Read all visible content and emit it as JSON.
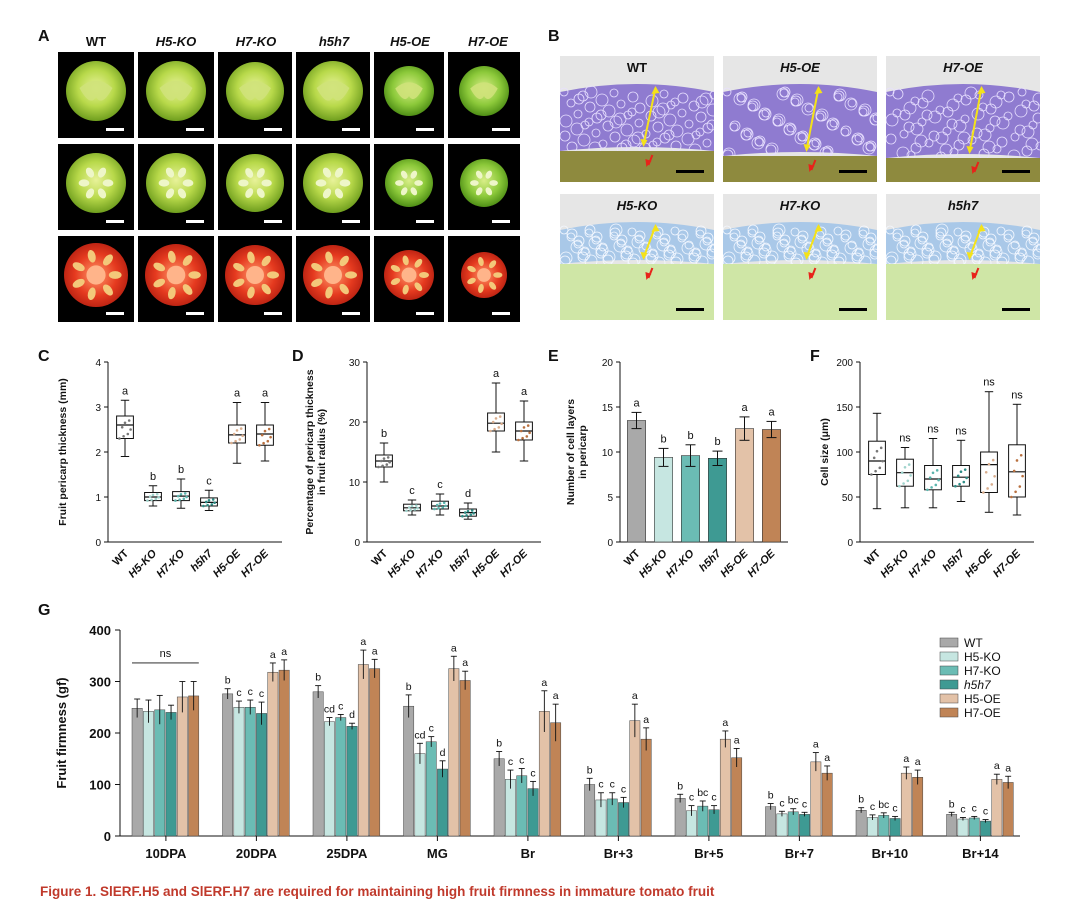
{
  "panels": {
    "a": "A",
    "b": "B",
    "c": "C",
    "d": "D",
    "e": "E",
    "f": "F",
    "g": "G"
  },
  "panel_a": {
    "columns": [
      "WT",
      "H5-KO",
      "H7-KO",
      "h5h7",
      "H5-OE",
      "H7-OE"
    ]
  },
  "panel_b": {
    "top_row": [
      "WT",
      "H5-OE",
      "H7-OE"
    ],
    "bottom_row": [
      "H5-KO",
      "H7-KO",
      "h5h7"
    ]
  },
  "caption": "Figure 1.  SlERF.H5 and SlERF.H7 are required for maintaining high fruit firmness in immature tomato fruit",
  "chart_data": [
    {
      "id": "C",
      "type": "box",
      "ylabel": "Fruit pericarp thickness (mm)",
      "ylim": [
        0,
        4
      ],
      "yticks": [
        0,
        1,
        2,
        3,
        4
      ],
      "categories": [
        "WT",
        "H5-KO",
        "H7-KO",
        "h5h7",
        "H5-OE",
        "H7-OE"
      ],
      "boxes": [
        {
          "min": 1.9,
          "q1": 2.3,
          "median": 2.6,
          "q3": 2.8,
          "max": 3.15,
          "color": "#777777"
        },
        {
          "min": 0.8,
          "q1": 0.92,
          "median": 1.0,
          "q3": 1.1,
          "max": 1.25,
          "color": "#9fd3cc"
        },
        {
          "min": 0.75,
          "q1": 0.92,
          "median": 1.02,
          "q3": 1.12,
          "max": 1.4,
          "color": "#5bb5ad"
        },
        {
          "min": 0.7,
          "q1": 0.8,
          "median": 0.88,
          "q3": 0.98,
          "max": 1.15,
          "color": "#2e8d86"
        },
        {
          "min": 1.75,
          "q1": 2.2,
          "median": 2.38,
          "q3": 2.6,
          "max": 3.1,
          "color": "#d9ad8d"
        },
        {
          "min": 1.8,
          "q1": 2.15,
          "median": 2.4,
          "q3": 2.6,
          "max": 3.1,
          "color": "#b9703f"
        }
      ],
      "letters": [
        "a",
        "b",
        "b",
        "c",
        "a",
        "a"
      ]
    },
    {
      "id": "D",
      "type": "box",
      "ylabel": "Percentage of pericarp thickness in fruit radius (%)",
      "ylim": [
        0,
        30
      ],
      "yticks": [
        0,
        10,
        20,
        30
      ],
      "categories": [
        "WT",
        "H5-KO",
        "H7-KO",
        "h5h7",
        "H5-OE",
        "H7-OE"
      ],
      "boxes": [
        {
          "min": 10.0,
          "q1": 12.5,
          "median": 13.5,
          "q3": 14.5,
          "max": 16.5,
          "color": "#777777"
        },
        {
          "min": 4.5,
          "q1": 5.2,
          "median": 5.7,
          "q3": 6.3,
          "max": 7.0,
          "color": "#9fd3cc"
        },
        {
          "min": 4.5,
          "q1": 5.5,
          "median": 6.0,
          "q3": 6.8,
          "max": 8.0,
          "color": "#5bb5ad"
        },
        {
          "min": 3.8,
          "q1": 4.3,
          "median": 4.9,
          "q3": 5.5,
          "max": 6.5,
          "color": "#2e8d86"
        },
        {
          "min": 15.0,
          "q1": 18.5,
          "median": 19.8,
          "q3": 21.5,
          "max": 26.5,
          "color": "#d9ad8d"
        },
        {
          "min": 13.5,
          "q1": 17.0,
          "median": 18.5,
          "q3": 20.0,
          "max": 23.5,
          "color": "#b9703f"
        }
      ],
      "letters": [
        "b",
        "c",
        "c",
        "d",
        "a",
        "a"
      ]
    },
    {
      "id": "E",
      "type": "bar",
      "ylabel": "Number of cell layers in pericarp",
      "ylim": [
        0,
        20
      ],
      "yticks": [
        0,
        5,
        10,
        15,
        20
      ],
      "categories": [
        "WT",
        "H5-KO",
        "H7-KO",
        "h5h7",
        "H5-OE",
        "H7-OE"
      ],
      "values": [
        13.5,
        9.4,
        9.6,
        9.3,
        12.6,
        12.5
      ],
      "errors": [
        0.9,
        1.0,
        1.2,
        0.8,
        1.3,
        0.9
      ],
      "colors": [
        "#a9a9a9",
        "#c6e6e1",
        "#6bbcb4",
        "#3e9a93",
        "#e3c2a8",
        "#c08456"
      ],
      "letters": [
        "a",
        "b",
        "b",
        "b",
        "a",
        "a"
      ]
    },
    {
      "id": "F",
      "type": "box",
      "ylabel": "Cell size (μm)",
      "ylim": [
        0,
        200
      ],
      "yticks": [
        0,
        50,
        100,
        150,
        200
      ],
      "categories": [
        "WT",
        "H5-KO",
        "H7-KO",
        "h5h7",
        "H5-OE",
        "H7-OE"
      ],
      "boxes": [
        {
          "min": 37,
          "q1": 75,
          "median": 90,
          "q3": 112,
          "max": 143,
          "color": "#777777"
        },
        {
          "min": 38,
          "q1": 62,
          "median": 77,
          "q3": 92,
          "max": 105,
          "color": "#9fd3cc"
        },
        {
          "min": 38,
          "q1": 58,
          "median": 70,
          "q3": 85,
          "max": 115,
          "color": "#5bb5ad"
        },
        {
          "min": 45,
          "q1": 62,
          "median": 72,
          "q3": 85,
          "max": 113,
          "color": "#2e8d86"
        },
        {
          "min": 33,
          "q1": 55,
          "median": 86,
          "q3": 100,
          "max": 167,
          "color": "#d9ad8d"
        },
        {
          "min": 30,
          "q1": 50,
          "median": 78,
          "q3": 108,
          "max": 153,
          "color": "#b9703f"
        }
      ],
      "letters": [
        "",
        "ns",
        "ns",
        "ns",
        "ns",
        "ns"
      ]
    },
    {
      "id": "G",
      "type": "bar",
      "ylabel": "Fruit firmness (gf)",
      "ylim": [
        0,
        400
      ],
      "yticks": [
        0,
        100,
        200,
        300,
        400
      ],
      "categories": [
        "10DPA",
        "20DPA",
        "25DPA",
        "MG",
        "Br",
        "Br+3",
        "Br+5",
        "Br+7",
        "Br+10",
        "Br+14"
      ],
      "legend": [
        "WT",
        "H5-KO",
        "H7-KO",
        "h5h7",
        "H5-OE",
        "H7-OE"
      ],
      "legend_position": "top-right",
      "ns_label": "ns",
      "series": [
        {
          "name": "WT",
          "color": "#a9a9a9",
          "values": [
            248,
            276,
            280,
            252,
            150,
            100,
            73,
            57,
            50,
            42
          ],
          "errors": [
            18,
            10,
            12,
            22,
            14,
            12,
            8,
            6,
            5,
            4
          ],
          "letters": [
            "",
            "b",
            "b",
            "b",
            "b",
            "b",
            "b",
            "b",
            "b",
            "b"
          ]
        },
        {
          "name": "H5-KO",
          "color": "#c6e6e1",
          "values": [
            242,
            250,
            222,
            160,
            110,
            70,
            49,
            43,
            36,
            33
          ],
          "errors": [
            22,
            12,
            8,
            20,
            18,
            14,
            10,
            5,
            5,
            3
          ],
          "letters": [
            "",
            "c",
            "cd",
            "cd",
            "c",
            "c",
            "c",
            "c",
            "c",
            "c"
          ]
        },
        {
          "name": "H7-KO",
          "color": "#6bbcb4",
          "values": [
            245,
            250,
            230,
            183,
            117,
            72,
            58,
            47,
            40,
            35
          ],
          "errors": [
            28,
            14,
            6,
            10,
            14,
            12,
            10,
            6,
            5,
            3
          ],
          "letters": [
            "",
            "c",
            "c",
            "c",
            "c",
            "c",
            "bc",
            "bc",
            "bc",
            "c"
          ]
        },
        {
          "name": "h5h7",
          "color": "#3e9a93",
          "values": [
            240,
            238,
            213,
            130,
            92,
            65,
            51,
            42,
            34,
            29
          ],
          "errors": [
            14,
            22,
            6,
            16,
            14,
            10,
            8,
            4,
            4,
            3
          ],
          "letters": [
            "",
            "c",
            "d",
            "d",
            "c",
            "c",
            "c",
            "c",
            "c",
            "c"
          ]
        },
        {
          "name": "H5-OE",
          "color": "#e3c2a8",
          "values": [
            270,
            318,
            333,
            325,
            242,
            224,
            188,
            144,
            122,
            110
          ],
          "errors": [
            30,
            18,
            28,
            24,
            40,
            32,
            16,
            18,
            12,
            10
          ],
          "letters": [
            "",
            "a",
            "a",
            "a",
            "a",
            "a",
            "a",
            "a",
            "a",
            "a"
          ]
        },
        {
          "name": "H7-OE",
          "color": "#c08456",
          "values": [
            272,
            322,
            325,
            302,
            220,
            188,
            152,
            122,
            114,
            104
          ],
          "errors": [
            28,
            20,
            18,
            18,
            36,
            22,
            18,
            14,
            14,
            12
          ],
          "letters": [
            "",
            "a",
            "a",
            "a",
            "a",
            "a",
            "a",
            "a",
            "a",
            "a"
          ]
        }
      ]
    }
  ]
}
